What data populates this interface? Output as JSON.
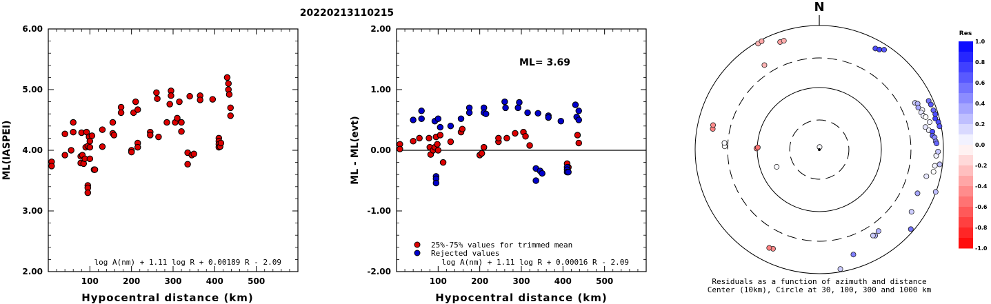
{
  "chart_data": [
    {
      "type": "scatter",
      "title": "20220213110215",
      "xlabel": "Hypocentral distance (km)",
      "ylabel": "ML(IASPEI)",
      "xlim": [
        0,
        600
      ],
      "ylim": [
        2.0,
        6.0
      ],
      "xticks": [
        "100",
        "200",
        "300",
        "400",
        "500"
      ],
      "yticks": [
        "2.00",
        "3.00",
        "4.00",
        "5.00",
        "6.00"
      ],
      "formula": "log A(nm) + 1.11 log R + 0.00189 R - 2.09",
      "color": "#dd0000",
      "points": [
        [
          8,
          3.81
        ],
        [
          8,
          3.74
        ],
        [
          40,
          4.27
        ],
        [
          40,
          3.92
        ],
        [
          55,
          4.0
        ],
        [
          60,
          4.3
        ],
        [
          60,
          4.46
        ],
        [
          78,
          3.9
        ],
        [
          78,
          3.79
        ],
        [
          80,
          4.29
        ],
        [
          82,
          3.92
        ],
        [
          85,
          3.78
        ],
        [
          88,
          3.86
        ],
        [
          90,
          4.05
        ],
        [
          92,
          4.3
        ],
        [
          95,
          4.07
        ],
        [
          95,
          3.42
        ],
        [
          95,
          3.38
        ],
        [
          95,
          3.3
        ],
        [
          98,
          4.22
        ],
        [
          100,
          4.05
        ],
        [
          100,
          4.15
        ],
        [
          100,
          3.86
        ],
        [
          105,
          4.24
        ],
        [
          110,
          3.68
        ],
        [
          112,
          3.68
        ],
        [
          130,
          4.34
        ],
        [
          130,
          4.06
        ],
        [
          155,
          4.46
        ],
        [
          155,
          4.28
        ],
        [
          158,
          4.25
        ],
        [
          175,
          4.71
        ],
        [
          175,
          4.62
        ],
        [
          200,
          4.0
        ],
        [
          200,
          3.97
        ],
        [
          205,
          4.62
        ],
        [
          210,
          4.8
        ],
        [
          215,
          4.67
        ],
        [
          215,
          4.12
        ],
        [
          215,
          4.05
        ],
        [
          245,
          4.3
        ],
        [
          245,
          4.25
        ],
        [
          260,
          4.95
        ],
        [
          262,
          4.85
        ],
        [
          265,
          4.22
        ],
        [
          285,
          4.46
        ],
        [
          292,
          4.76
        ],
        [
          295,
          4.98
        ],
        [
          295,
          4.9
        ],
        [
          305,
          4.46
        ],
        [
          310,
          4.53
        ],
        [
          315,
          4.8
        ],
        [
          320,
          4.46
        ],
        [
          320,
          4.31
        ],
        [
          335,
          3.96
        ],
        [
          335,
          3.77
        ],
        [
          340,
          4.89
        ],
        [
          345,
          3.92
        ],
        [
          350,
          3.94
        ],
        [
          365,
          4.9
        ],
        [
          365,
          4.83
        ],
        [
          395,
          4.84
        ],
        [
          410,
          4.2
        ],
        [
          410,
          4.15
        ],
        [
          410,
          4.1
        ],
        [
          410,
          4.05
        ],
        [
          413,
          4.06
        ],
        [
          415,
          4.12
        ],
        [
          430,
          5.2
        ],
        [
          433,
          5.1
        ],
        [
          433,
          5.0
        ],
        [
          435,
          4.92
        ],
        [
          438,
          4.7
        ],
        [
          438,
          4.57
        ]
      ]
    },
    {
      "type": "scatter",
      "xlabel": "Hypocentral distance (km)",
      "ylabel": "ML - ML(evt)",
      "xlim": [
        0,
        600
      ],
      "ylim": [
        -2.0,
        2.0
      ],
      "xticks": [
        "100",
        "200",
        "300",
        "400",
        "500"
      ],
      "yticks": [
        "-2.00",
        "-1.00",
        "0.00",
        "1.00",
        "2.00"
      ],
      "annotation": "ML= 3.69",
      "formula": "log A(nm) + 1.11 log R + 0.00016 R - 2.09",
      "legend": [
        {
          "label": "25%-75% values for trimmed mean",
          "color": "#dd0000"
        },
        {
          "label": "Rejected values",
          "color": "#0000cc"
        }
      ],
      "series": [
        {
          "name": "25%-75% values for trimmed mean",
          "color": "#dd0000",
          "points": [
            [
              8,
              0.1
            ],
            [
              8,
              0.02
            ],
            [
              40,
              0.15
            ],
            [
              55,
              0.2
            ],
            [
              78,
              0.2
            ],
            [
              80,
              0.05
            ],
            [
              82,
              -0.07
            ],
            [
              88,
              0.0
            ],
            [
              92,
              0.05
            ],
            [
              95,
              0.22
            ],
            [
              98,
              0.1
            ],
            [
              100,
              0.0
            ],
            [
              105,
              0.25
            ],
            [
              112,
              -0.2
            ],
            [
              130,
              0.14
            ],
            [
              155,
              0.3
            ],
            [
              158,
              0.35
            ],
            [
              200,
              -0.08
            ],
            [
              205,
              -0.05
            ],
            [
              210,
              0.05
            ],
            [
              245,
              0.14
            ],
            [
              245,
              0.2
            ],
            [
              265,
              0.2
            ],
            [
              285,
              0.28
            ],
            [
              305,
              0.3
            ],
            [
              310,
              0.23
            ],
            [
              320,
              0.08
            ],
            [
              410,
              -0.22
            ],
            [
              413,
              -0.28
            ],
            [
              435,
              0.25
            ],
            [
              438,
              0.12
            ]
          ]
        },
        {
          "name": "Rejected values",
          "color": "#0000cc",
          "points": [
            [
              40,
              0.5
            ],
            [
              60,
              0.65
            ],
            [
              60,
              0.52
            ],
            [
              92,
              0.48
            ],
            [
              95,
              -0.43
            ],
            [
              95,
              -0.47
            ],
            [
              95,
              -0.54
            ],
            [
              100,
              0.52
            ],
            [
              105,
              0.38
            ],
            [
              130,
              0.4
            ],
            [
              155,
              0.52
            ],
            [
              175,
              0.7
            ],
            [
              175,
              0.62
            ],
            [
              210,
              0.7
            ],
            [
              210,
              0.62
            ],
            [
              215,
              0.6
            ],
            [
              260,
              0.8
            ],
            [
              262,
              0.7
            ],
            [
              292,
              0.7
            ],
            [
              295,
              0.79
            ],
            [
              315,
              0.62
            ],
            [
              335,
              -0.3
            ],
            [
              335,
              -0.5
            ],
            [
              340,
              0.61
            ],
            [
              345,
              -0.34
            ],
            [
              350,
              -0.38
            ],
            [
              365,
              0.57
            ],
            [
              365,
              0.54
            ],
            [
              395,
              0.48
            ],
            [
              410,
              -0.28
            ],
            [
              410,
              -0.32
            ],
            [
              410,
              -0.36
            ],
            [
              413,
              -0.36
            ],
            [
              430,
              0.75
            ],
            [
              433,
              0.55
            ],
            [
              438,
              0.65
            ],
            [
              438,
              0.5
            ]
          ]
        }
      ]
    },
    {
      "type": "scatter",
      "subtype": "polar",
      "north_label": "N",
      "caption_line1": "Residuals as a function of azimuth and distance",
      "caption_line2": "Center (10km), Circle at 30, 100, 300 and 1000 km",
      "rings_km": [
        30,
        100,
        300,
        1000
      ],
      "colorbar": {
        "title": "Res",
        "ticks": [
          "1.0",
          "0.8",
          "0.6",
          "0.4",
          "0.2",
          "0.0",
          "-0.2",
          "-0.4",
          "-0.6",
          "-0.8",
          "-1.0"
        ],
        "range": [
          -1.0,
          1.0
        ]
      },
      "stations": [
        {
          "az": 7,
          "dist": 11,
          "res": 0.02
        },
        {
          "az": 248,
          "dist": 55,
          "res": 0.02
        },
        {
          "az": 271,
          "dist": 103,
          "res": -0.5
        },
        {
          "az": 272,
          "dist": 98,
          "res": -0.55
        },
        {
          "az": 272,
          "dist": 335,
          "res": 0.0
        },
        {
          "az": 274,
          "dist": 340,
          "res": 0.02
        },
        {
          "az": 281,
          "dist": 560,
          "res": -0.5
        },
        {
          "az": 283,
          "dist": 570,
          "res": -0.45
        },
        {
          "az": 327,
          "dist": 420,
          "res": -0.3
        },
        {
          "az": 340,
          "dist": 700,
          "res": -0.38
        },
        {
          "az": 342,
          "dist": 700,
          "res": -0.32
        },
        {
          "az": 205,
          "dist": 580,
          "res": -0.45
        },
        {
          "az": 207,
          "dist": 600,
          "res": -0.5
        },
        {
          "az": 162,
          "dist": 600,
          "res": 0.5
        },
        {
          "az": 170,
          "dist": 900,
          "res": 0.2
        },
        {
          "az": 147,
          "dist": 450,
          "res": 0.3
        },
        {
          "az": 148,
          "dist": 430,
          "res": 0.2
        },
        {
          "az": 144,
          "dist": 420,
          "res": 0.3
        },
        {
          "az": 131,
          "dist": 900,
          "res": 0.55
        },
        {
          "az": 124,
          "dist": 620,
          "res": 0.2
        },
        {
          "az": 114,
          "dist": 540,
          "res": 0.35
        },
        {
          "az": 104,
          "dist": 600,
          "res": 0.1
        },
        {
          "az": 101,
          "dist": 750,
          "res": 0.0
        },
        {
          "az": 98,
          "dist": 760,
          "res": 0.05
        },
        {
          "az": 93,
          "dist": 770,
          "res": 0.05
        },
        {
          "az": 91,
          "dist": 820,
          "res": 0.22
        },
        {
          "az": 110,
          "dist": 990,
          "res": 0.25
        },
        {
          "az": 64,
          "dist": 520,
          "res": 0.2
        },
        {
          "az": 65,
          "dist": 560,
          "res": 0.3
        },
        {
          "az": 67,
          "dist": 540,
          "res": 0.35
        },
        {
          "az": 69,
          "dist": 600,
          "res": 0.0
        },
        {
          "az": 70,
          "dist": 560,
          "res": 0.1
        },
        {
          "az": 72,
          "dist": 580,
          "res": 0.05
        },
        {
          "az": 73,
          "dist": 620,
          "res": 0.0
        },
        {
          "az": 76,
          "dist": 680,
          "res": 0.05
        },
        {
          "az": 78,
          "dist": 560,
          "res": 0.1
        },
        {
          "az": 80,
          "dist": 620,
          "res": 0.05
        },
        {
          "az": 81,
          "dist": 700,
          "res": 0.7
        },
        {
          "az": 83,
          "dist": 690,
          "res": 0.65
        },
        {
          "az": 84,
          "dist": 740,
          "res": 0.45
        },
        {
          "az": 86,
          "dist": 760,
          "res": 0.5
        },
        {
          "az": 87,
          "dist": 780,
          "res": 0.6
        },
        {
          "az": 66,
          "dist": 850,
          "res": 0.55
        },
        {
          "az": 68,
          "dist": 870,
          "res": 0.65
        },
        {
          "az": 71,
          "dist": 880,
          "res": 0.6
        },
        {
          "az": 73,
          "dist": 900,
          "res": 0.7
        },
        {
          "az": 75,
          "dist": 860,
          "res": 0.75
        },
        {
          "az": 77,
          "dist": 930,
          "res": 0.7
        },
        {
          "az": 79,
          "dist": 940,
          "res": 0.65
        },
        {
          "az": 97,
          "dist": 900,
          "res": 0.25
        },
        {
          "az": 29,
          "dist": 730,
          "res": 0.7
        },
        {
          "az": 31,
          "dist": 760,
          "res": 0.75
        },
        {
          "az": 33,
          "dist": 830,
          "res": 0.65
        },
        {
          "az": 330,
          "dist": 940,
          "res": -0.3
        },
        {
          "az": 332,
          "dist": 950,
          "res": -0.35
        }
      ]
    }
  ]
}
